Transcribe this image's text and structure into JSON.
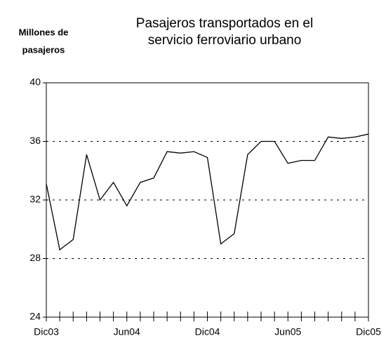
{
  "chart_data": {
    "type": "line",
    "title": [
      "Pasajeros transportados en el",
      "servicio ferroviario urbano"
    ],
    "y_label": [
      "Millones de",
      "pasajeros"
    ],
    "categories": [
      "Dic03",
      null,
      null,
      null,
      null,
      null,
      "Jun04",
      null,
      null,
      null,
      null,
      null,
      "Dic04",
      null,
      null,
      null,
      null,
      null,
      "Jun05",
      null,
      null,
      null,
      null,
      null,
      "Dic05"
    ],
    "series": [
      {
        "name": "Pasajeros",
        "color": "#000000",
        "values": [
          33.1,
          28.6,
          29.3,
          35.1,
          32.0,
          33.2,
          31.6,
          33.2,
          33.5,
          35.3,
          35.2,
          35.3,
          34.9,
          29.0,
          29.7,
          35.1,
          36.0,
          36.0,
          34.5,
          34.7,
          34.7,
          36.3,
          36.2,
          36.3,
          36.5
        ]
      }
    ],
    "ylim": [
      24,
      40
    ],
    "yticks": [
      24,
      28,
      32,
      36,
      40
    ],
    "grid": true
  }
}
